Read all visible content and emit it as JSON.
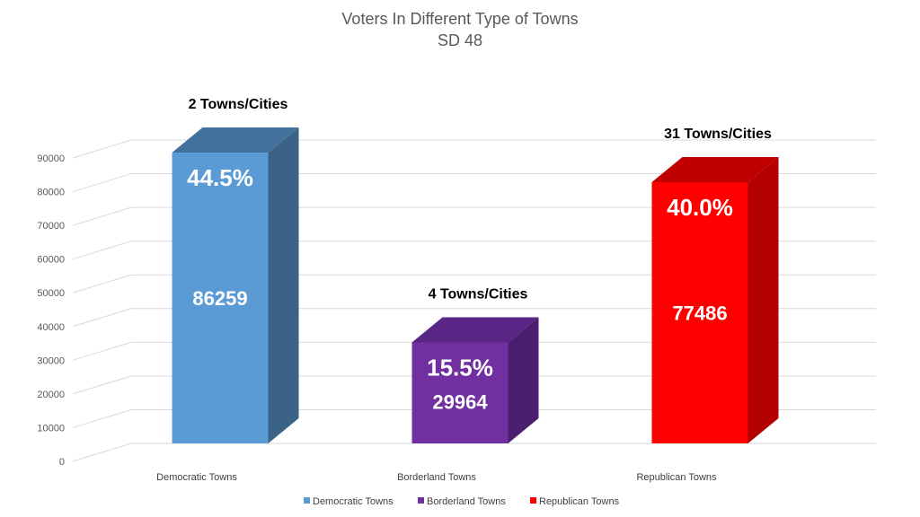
{
  "chart_data": {
    "type": "bar",
    "title": "Voters In Different Type of Towns",
    "subtitle": "SD 48",
    "categories": [
      "Democratic Towns",
      "Borderland Towns",
      "Republican Towns"
    ],
    "values": [
      86259,
      29964,
      77486
    ],
    "percent_labels": [
      "44.5%",
      "15.5%",
      "40.0%"
    ],
    "value_labels": [
      "86259",
      "29964",
      "77486"
    ],
    "annotations": [
      "2 Towns/Cities",
      "4 Towns/Cities",
      "31 Towns/Cities"
    ],
    "colors": [
      "#5b9bd5",
      "#7030a0",
      "#ff0000"
    ],
    "side_colors": [
      "#3b6386",
      "#4b1f6f",
      "#b30000"
    ],
    "top_colors": [
      "#41719c",
      "#5a2686",
      "#c00000"
    ],
    "ylim": [
      0,
      90000
    ],
    "yticks": [
      "0",
      "10000",
      "20000",
      "30000",
      "40000",
      "50000",
      "60000",
      "70000",
      "80000",
      "90000"
    ],
    "grid": true,
    "legend_position": "bottom",
    "legend": [
      "Democratic Towns",
      "Borderland Towns",
      "Republican Towns"
    ],
    "style": "3d-column"
  }
}
